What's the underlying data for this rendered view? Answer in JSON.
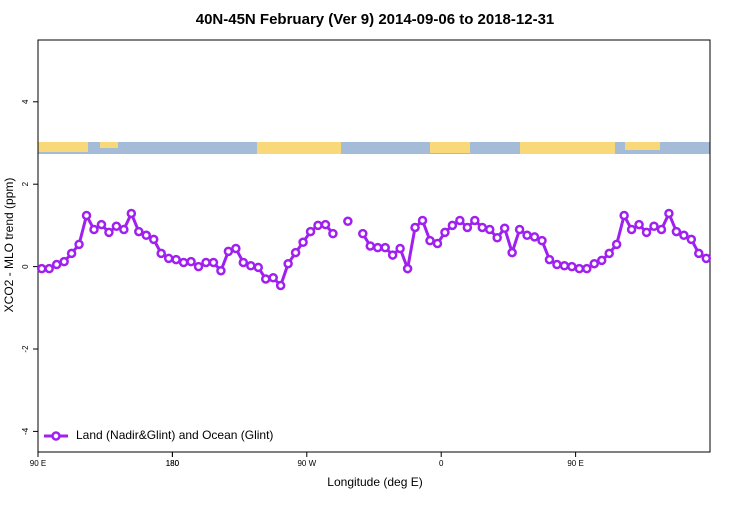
{
  "chart_data": {
    "type": "line",
    "title": "40N-45N February (Ver 9)   2014-09-06 to 2018-12-31",
    "x_label": "Longitude (deg E)",
    "y_label": "XCO2 - MLO trend (ppm)",
    "x": [
      92.5,
      97.5,
      102.5,
      107.5,
      112.5,
      117.5,
      122.5,
      127.5,
      132.5,
      137.5,
      142.5,
      147.5,
      152.5,
      157.5,
      162.5,
      167.5,
      172.5,
      177.5,
      182.5,
      187.5,
      192.5,
      197.5,
      202.5,
      207.5,
      212.5,
      217.5,
      222.5,
      227.5,
      232.5,
      237.5,
      242.5,
      247.5,
      252.5,
      257.5,
      262.5,
      267.5,
      272.5,
      277.5,
      282.5,
      287.5,
      292.5,
      297.5,
      302.5,
      307.5,
      312.5,
      317.5,
      322.5,
      327.5,
      332.5,
      337.5,
      342.5,
      347.5,
      352.5,
      357.5,
      362.5,
      367.5,
      372.5,
      377.5,
      382.5,
      387.5,
      392.5,
      397.5,
      402.5,
      407.5,
      412.5,
      417.5,
      422.5,
      427.5,
      432.5,
      437.5,
      442.5,
      447.5,
      452.5,
      457.5,
      462.5,
      467.5,
      472.5,
      477.5,
      482.5,
      487.5,
      492.5,
      497.5,
      502.5,
      507.5,
      512.5,
      517.5,
      522.5,
      527.5,
      532.5,
      537.5
    ],
    "series": [
      {
        "name": "Land (Nadir&Glint) and Ocean (Glint)",
        "color": "#a020f0",
        "values": [
          -0.05,
          -0.05,
          0.05,
          0.12,
          0.32,
          0.54,
          1.24,
          0.9,
          1.02,
          0.83,
          0.98,
          0.9,
          1.29,
          0.85,
          0.76,
          0.66,
          0.32,
          0.2,
          0.17,
          0.1,
          0.12,
          0,
          0.1,
          0.1,
          -0.1,
          0.37,
          0.44,
          0.1,
          0.02,
          -0.02,
          -0.3,
          -0.27,
          -0.46,
          0.07,
          0.34,
          0.59,
          0.85,
          1.0,
          1.02,
          0.8,
          null,
          1.1,
          null,
          0.8,
          0.5,
          0.46,
          0.46,
          0.28,
          0.44,
          -0.05,
          0.95,
          1.12,
          0.63,
          0.56,
          0.83,
          1.0,
          1.12,
          0.95,
          1.12,
          0.95,
          0.9,
          0.7,
          0.93,
          0.34,
          0.9,
          0.76,
          0.72,
          0.63,
          0.17,
          0.05,
          0.02,
          0,
          -0.05,
          -0.05,
          0.07,
          0.15,
          0.32,
          0.54,
          1.24,
          0.9,
          1.02,
          0.83,
          0.98,
          0.9,
          1.29,
          0.85,
          0.76,
          0.66,
          0.32,
          0.2
        ]
      }
    ],
    "xlim": [
      90,
      540
    ],
    "xticks": [
      {
        "value": 90,
        "label": "90 E"
      },
      180,
      {
        "value": 270,
        "label": "90 W"
      },
      {
        "value": 360,
        "label": "0"
      },
      {
        "value": 450,
        "label": "90 E"
      },
      180.0001
    ],
    "ylim": [
      -4.5,
      5.5
    ],
    "yticks": [
      -4,
      -2,
      0,
      2,
      4
    ],
    "legend": "bottom-left"
  }
}
